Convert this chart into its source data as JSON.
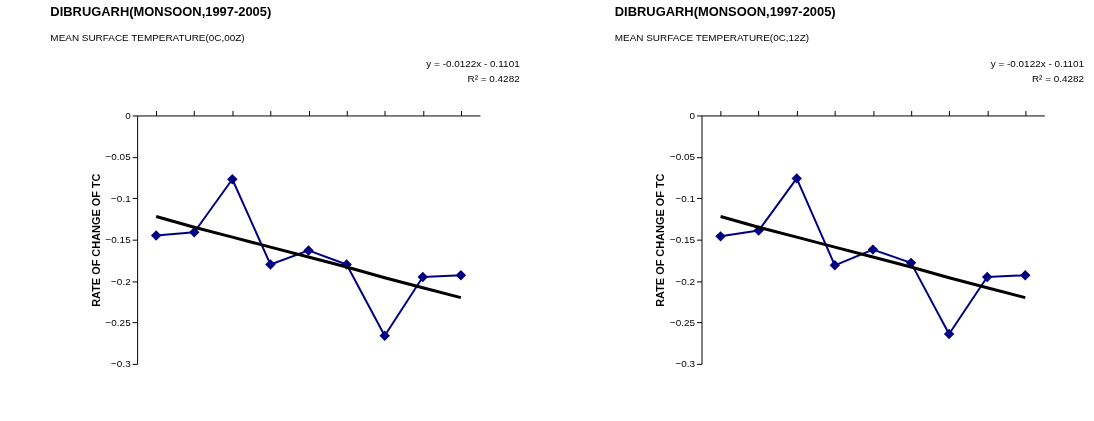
{
  "chart_data": [
    {
      "type": "line",
      "title": "DIBRUGARH(MONSOON,1997-2005)",
      "subtitle": "MEAN SURFACE TEMPERATURE(0C,00Z)",
      "ylabel": "RATE OF CHANGE OF TC",
      "annotations": [
        "y = -0.0122x - 0.1101",
        "R² = 0.4282"
      ],
      "categories": [
        null,
        null,
        null,
        null,
        null,
        null,
        null,
        null,
        null
      ],
      "ylim": [
        -0.3,
        0
      ],
      "yticks": [
        0,
        -0.05,
        -0.1,
        -0.15,
        -0.2,
        -0.25,
        -0.3
      ],
      "grid": false,
      "tick_labels": "y",
      "series": [
        {
          "color": "#000080",
          "marker": "diamond",
          "values": [
            -0.145,
            -0.141,
            -0.077,
            -0.18,
            -0.163,
            -0.18,
            -0.266,
            -0.195,
            -0.193
          ]
        },
        {
          "color": "#000000",
          "marker": "none",
          "values": [
            -0.122,
            -0.135,
            -0.147,
            -0.159,
            -0.171,
            -0.183,
            -0.196,
            -0.208,
            -0.22
          ]
        }
      ]
    },
    {
      "type": "line",
      "title": "DIBRUGARH(MONSOON,1997-2005)",
      "subtitle": "MEAN SURFACE TEMPERATURE(0C,12Z)",
      "ylabel": "RATE OF CHANGE OF TC",
      "annotations": [
        "y = -0.0122x - 0.1101",
        "R² = 0.4282"
      ],
      "categories": [
        null,
        null,
        null,
        null,
        null,
        null,
        null,
        null,
        null
      ],
      "ylim": [
        -0.3,
        0
      ],
      "yticks": [
        0,
        -0.05,
        -0.1,
        -0.15,
        -0.2,
        -0.25,
        -0.3
      ],
      "grid": false,
      "tick_labels": "y",
      "series": [
        {
          "color": "#000080",
          "marker": "diamond",
          "values": [
            -0.146,
            -0.139,
            -0.076,
            -0.181,
            -0.162,
            -0.178,
            -0.264,
            -0.195,
            -0.193
          ]
        },
        {
          "color": "#000000",
          "marker": "none",
          "values": [
            -0.122,
            -0.135,
            -0.147,
            -0.159,
            -0.171,
            -0.183,
            -0.196,
            -0.208,
            -0.22
          ]
        }
      ]
    }
  ]
}
